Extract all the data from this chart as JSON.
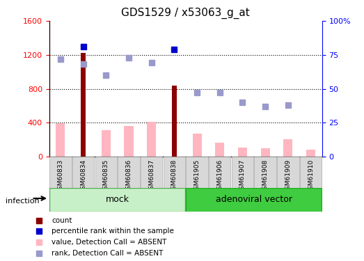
{
  "title": "GDS1529 / x53063_g_at",
  "samples": [
    "GSM60833",
    "GSM60834",
    "GSM60835",
    "GSM60836",
    "GSM60837",
    "GSM60838",
    "GSM61905",
    "GSM61906",
    "GSM61907",
    "GSM61908",
    "GSM61909",
    "GSM61910"
  ],
  "count_values": [
    null,
    1220,
    null,
    null,
    null,
    840,
    null,
    null,
    null,
    null,
    null,
    null
  ],
  "count_absent": [
    390,
    null,
    310,
    360,
    410,
    null,
    270,
    165,
    110,
    95,
    205,
    80
  ],
  "percentile_rank": [
    null,
    81,
    null,
    null,
    null,
    79,
    null,
    null,
    null,
    null,
    null,
    null
  ],
  "rank_absent": [
    72,
    68,
    60,
    73,
    69,
    null,
    47,
    47,
    40,
    37,
    38,
    null
  ],
  "ylim_left": [
    0,
    1600
  ],
  "ylim_right": [
    0,
    100
  ],
  "yticks_left": [
    0,
    400,
    800,
    1200,
    1600
  ],
  "yticks_right": [
    0,
    25,
    50,
    75,
    100
  ],
  "color_count": "#8B0000",
  "color_rank": "#0000CD",
  "color_absent_value": "#FFB6C1",
  "color_absent_rank": "#9999CC",
  "group1_label": "mock",
  "group2_label": "adenoviral vector",
  "infection_label": "infection",
  "group1_bg": "#c8f0c8",
  "group2_bg": "#40cc40",
  "sample_bg": "#d8d8d8",
  "sample_edge": "#aaaaaa"
}
